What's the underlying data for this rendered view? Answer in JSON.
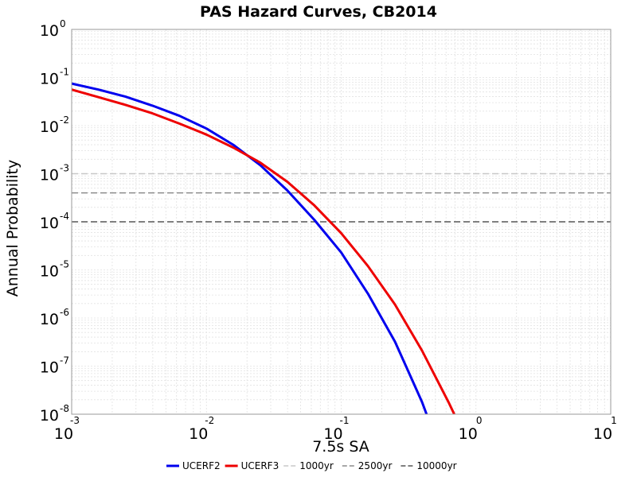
{
  "chart_data": {
    "type": "line",
    "title": "PAS Hazard Curves, CB2014",
    "xlabel": "7.5s SA",
    "ylabel": "Annual Probability",
    "x_scale": "log",
    "y_scale": "log",
    "xlim": [
      0.001,
      10
    ],
    "ylim": [
      1e-08,
      1
    ],
    "grid": true,
    "legend_position": "bottom",
    "x_ticks": [
      {
        "base": "10",
        "exp": "-3"
      },
      {
        "base": "10",
        "exp": "-2"
      },
      {
        "base": "10",
        "exp": "-1"
      },
      {
        "base": "10",
        "exp": "0"
      },
      {
        "base": "10",
        "exp": "1"
      }
    ],
    "y_ticks": [
      {
        "base": "10",
        "exp": "0"
      },
      {
        "base": "10",
        "exp": "-1"
      },
      {
        "base": "10",
        "exp": "-2"
      },
      {
        "base": "10",
        "exp": "-3"
      },
      {
        "base": "10",
        "exp": "-4"
      },
      {
        "base": "10",
        "exp": "-5"
      },
      {
        "base": "10",
        "exp": "-6"
      },
      {
        "base": "10",
        "exp": "-7"
      },
      {
        "base": "10",
        "exp": "-8"
      }
    ],
    "series": [
      {
        "name": "UCERF2",
        "color": "#0000ee",
        "style": "solid",
        "x": [
          0.001,
          0.00158,
          0.00251,
          0.00398,
          0.00631,
          0.01,
          0.0158,
          0.0251,
          0.0398,
          0.0631,
          0.1,
          0.158,
          0.251,
          0.398,
          0.43
        ],
        "y": [
          0.075,
          0.056,
          0.04,
          0.026,
          0.016,
          0.0087,
          0.004,
          0.0015,
          0.00045,
          0.00011,
          2.3e-05,
          3.2e-06,
          3.2e-07,
          1.8e-08,
          1e-08
        ]
      },
      {
        "name": "UCERF3",
        "color": "#ee0000",
        "style": "solid",
        "x": [
          0.001,
          0.00158,
          0.00251,
          0.00398,
          0.00631,
          0.01,
          0.0158,
          0.0251,
          0.0398,
          0.0631,
          0.1,
          0.158,
          0.251,
          0.398,
          0.631,
          0.69
        ],
        "y": [
          0.056,
          0.039,
          0.027,
          0.018,
          0.011,
          0.0065,
          0.0035,
          0.0017,
          0.00068,
          0.00022,
          5.8e-05,
          1.2e-05,
          1.9e-06,
          2.1e-07,
          1.7e-08,
          1e-08
        ]
      },
      {
        "name": "1000yr",
        "color": "#c8c8c8",
        "style": "dashed",
        "x": [
          0.001,
          10
        ],
        "y": [
          0.001,
          0.001
        ]
      },
      {
        "name": "2500yr",
        "color": "#8c8c8c",
        "style": "dashed",
        "x": [
          0.001,
          10
        ],
        "y": [
          0.0004,
          0.0004
        ]
      },
      {
        "name": "10000yr",
        "color": "#555555",
        "style": "dashed",
        "x": [
          0.001,
          10
        ],
        "y": [
          0.0001,
          0.0001
        ]
      }
    ]
  }
}
